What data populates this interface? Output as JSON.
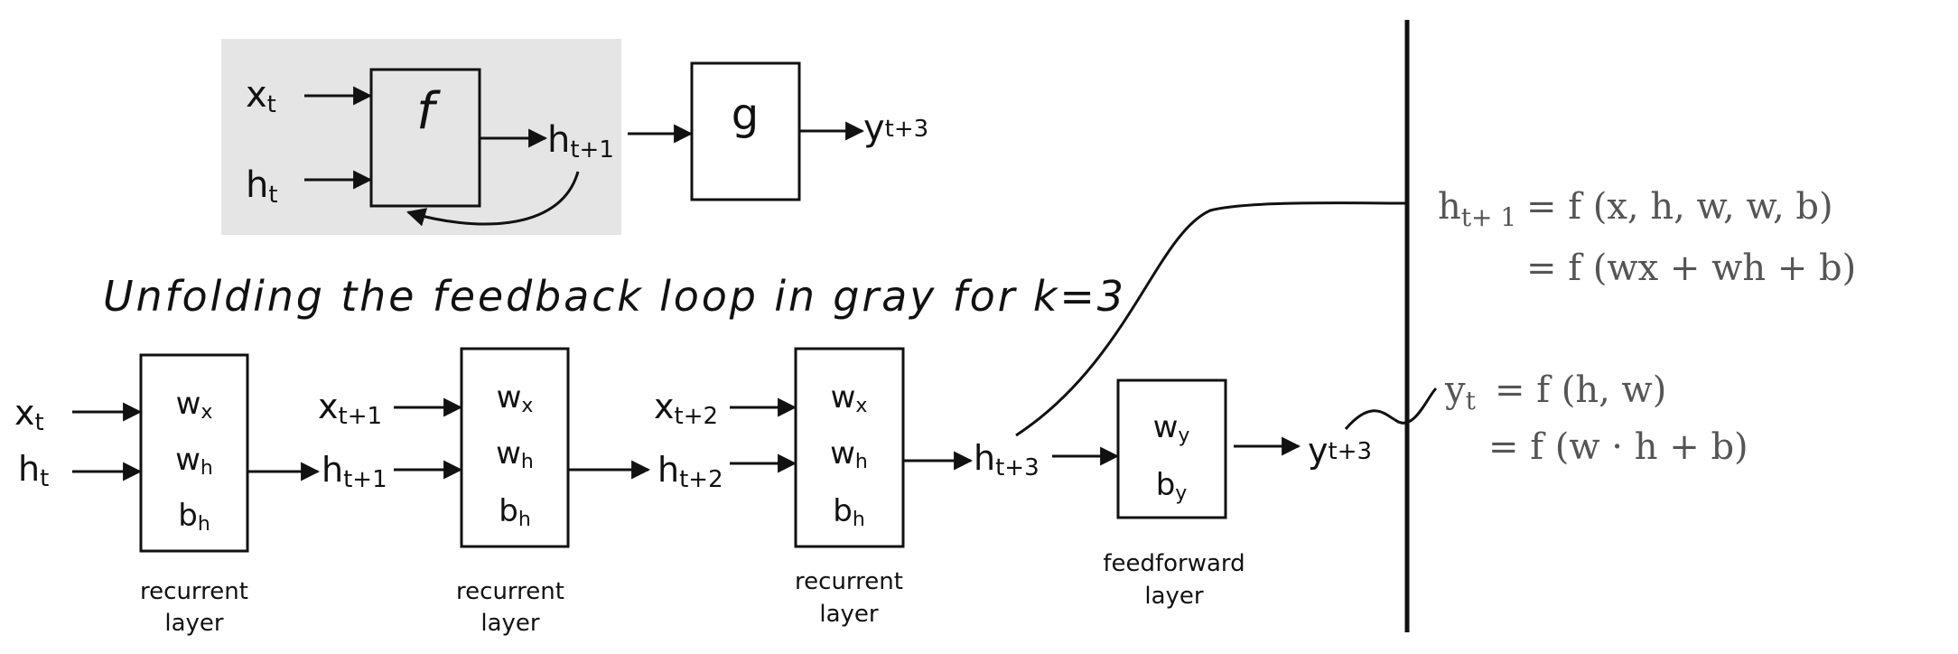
{
  "top": {
    "inputs": [
      {
        "base": "x",
        "sub": "t"
      },
      {
        "base": "h",
        "sub": "t"
      }
    ],
    "f_label": "f",
    "h_out": {
      "base": "h",
      "sub": "t+1"
    },
    "g_label": "g",
    "y_out": {
      "base": "y",
      "sub": "t+3"
    }
  },
  "title": "Unfolding the feedback loop in gray for k=3",
  "recurrent_params": [
    {
      "base": "w",
      "sub": "x"
    },
    {
      "base": "w",
      "sub": "h"
    },
    {
      "base": "b",
      "sub": "h"
    }
  ],
  "unfolded": {
    "blocks": [
      {
        "x_in": {
          "base": "x",
          "sub": "t"
        },
        "h_in": {
          "base": "h",
          "sub": "t"
        },
        "layer_label": [
          "recurrent",
          "layer"
        ]
      },
      {
        "x_in": {
          "base": "x",
          "sub": "t+1"
        },
        "h_in": {
          "base": "h",
          "sub": "t+1"
        },
        "layer_label": [
          "recurrent",
          "layer"
        ]
      },
      {
        "x_in": {
          "base": "x",
          "sub": "t+2"
        },
        "h_in": {
          "base": "h",
          "sub": "t+2"
        },
        "layer_label": [
          "recurrent",
          "layer"
        ]
      }
    ],
    "h_final": {
      "base": "h",
      "sub": "t+3"
    },
    "ff_params": [
      {
        "base": "w",
        "sub": "y"
      },
      {
        "base": "b",
        "sub": "y"
      }
    ],
    "ff_label": [
      "feedforward",
      "layer"
    ],
    "y_final": {
      "base": "y",
      "sub": "t+3"
    }
  },
  "equations": {
    "h_lhs": {
      "base": "h",
      "sub": "t+ 1"
    },
    "h_line1": "= f (x, h, w, w, b)",
    "h_line2": "= f (wx + wh + b)",
    "y_lhs": {
      "base": "y",
      "sub": "t"
    },
    "y_line1": "= f (h, w)",
    "y_line2": "= f (w · h + b)"
  },
  "colors": {
    "gray_panel": "#e5e5e5",
    "ink": "#111111",
    "math": "#555555"
  }
}
